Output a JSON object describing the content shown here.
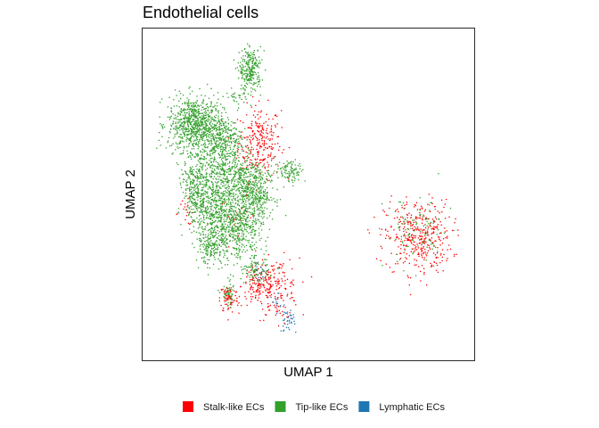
{
  "chart_data": {
    "type": "scatter",
    "title": "Endothelial cells",
    "xlabel": "UMAP 1",
    "ylabel": "UMAP 2",
    "xticks": false,
    "yticks": false,
    "grid": false,
    "legend_position": "bottom",
    "series": [
      {
        "name": "Stalk-like ECs",
        "color": "#FF0000",
        "clusters": [
          {
            "cx": 0.34,
            "cy": 0.67,
            "sx": 0.035,
            "sy": 0.06,
            "n": 260
          },
          {
            "cx": 0.27,
            "cy": 0.43,
            "sx": 0.03,
            "sy": 0.03,
            "n": 30
          },
          {
            "cx": 0.1,
            "cy": 0.44,
            "sx": 0.02,
            "sy": 0.02,
            "n": 20
          },
          {
            "cx": 0.34,
            "cy": 0.2,
            "sx": 0.03,
            "sy": 0.035,
            "n": 150
          },
          {
            "cx": 0.4,
            "cy": 0.19,
            "sx": 0.035,
            "sy": 0.05,
            "n": 130
          },
          {
            "cx": 0.24,
            "cy": 0.16,
            "sx": 0.015,
            "sy": 0.025,
            "n": 80
          },
          {
            "cx": 0.86,
            "cy": 0.36,
            "sx": 0.055,
            "sy": 0.06,
            "n": 380
          }
        ]
      },
      {
        "name": "Tip-like ECs",
        "color": "#33A02C",
        "clusters": [
          {
            "cx": 0.13,
            "cy": 0.73,
            "sx": 0.045,
            "sy": 0.045,
            "n": 800
          },
          {
            "cx": 0.22,
            "cy": 0.68,
            "sx": 0.03,
            "sy": 0.035,
            "n": 250
          },
          {
            "cx": 0.18,
            "cy": 0.56,
            "sx": 0.045,
            "sy": 0.06,
            "n": 450
          },
          {
            "cx": 0.28,
            "cy": 0.55,
            "sx": 0.04,
            "sy": 0.05,
            "n": 350
          },
          {
            "cx": 0.33,
            "cy": 0.5,
            "sx": 0.03,
            "sy": 0.04,
            "n": 250
          },
          {
            "cx": 0.13,
            "cy": 0.5,
            "sx": 0.02,
            "sy": 0.05,
            "n": 200
          },
          {
            "cx": 0.27,
            "cy": 0.4,
            "sx": 0.04,
            "sy": 0.06,
            "n": 550
          },
          {
            "cx": 0.18,
            "cy": 0.42,
            "sx": 0.03,
            "sy": 0.04,
            "n": 250
          },
          {
            "cx": 0.18,
            "cy": 0.32,
            "sx": 0.025,
            "sy": 0.025,
            "n": 150
          },
          {
            "cx": 0.44,
            "cy": 0.58,
            "sx": 0.025,
            "sy": 0.02,
            "n": 100
          },
          {
            "cx": 0.31,
            "cy": 0.91,
            "sx": 0.018,
            "sy": 0.035,
            "n": 260
          },
          {
            "cx": 0.27,
            "cy": 0.82,
            "sx": 0.02,
            "sy": 0.015,
            "n": 30
          },
          {
            "cx": 0.33,
            "cy": 0.25,
            "sx": 0.02,
            "sy": 0.02,
            "n": 70
          },
          {
            "cx": 0.24,
            "cy": 0.17,
            "sx": 0.012,
            "sy": 0.02,
            "n": 45
          },
          {
            "cx": 0.86,
            "cy": 0.37,
            "sx": 0.055,
            "sy": 0.06,
            "n": 110
          }
        ]
      },
      {
        "name": "Lymphatic ECs",
        "color": "#1F78B4",
        "clusters": [
          {
            "cx": 0.43,
            "cy": 0.09,
            "sx": 0.012,
            "sy": 0.02,
            "n": 40
          },
          {
            "cx": 0.4,
            "cy": 0.14,
            "sx": 0.01,
            "sy": 0.015,
            "n": 15
          },
          {
            "cx": 0.34,
            "cy": 0.25,
            "sx": 0.01,
            "sy": 0.015,
            "n": 12
          }
        ]
      }
    ]
  }
}
